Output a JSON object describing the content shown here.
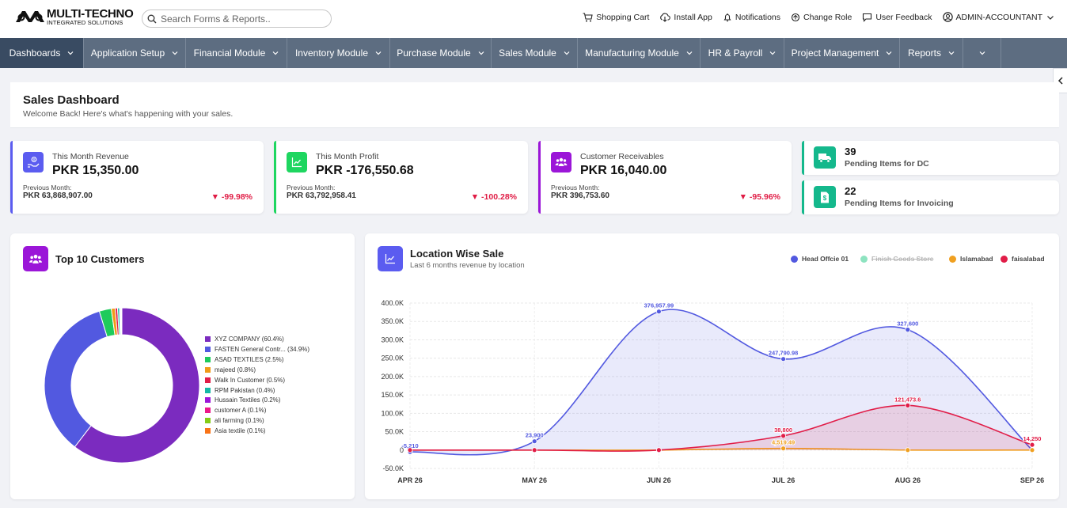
{
  "app": {
    "logo_name": "MULTI-TECHNO",
    "logo_sub": "INTEGRATED SOLUTIONS"
  },
  "search": {
    "placeholder": "Search Forms & Reports.."
  },
  "toplinks": [
    {
      "label": "Shopping Cart",
      "icon": "cart-icon"
    },
    {
      "label": "Install App",
      "icon": "cloud-download-icon"
    },
    {
      "label": "Notifications",
      "icon": "bell-icon"
    },
    {
      "label": "Change Role",
      "icon": "refresh-icon"
    },
    {
      "label": "User Feedback",
      "icon": "comment-icon"
    },
    {
      "label": "ADMIN-ACCOUNTANT",
      "icon": "user-circle-icon"
    }
  ],
  "nav": [
    {
      "label": "Dashboards",
      "active": true
    },
    {
      "label": "Application Setup"
    },
    {
      "label": "Financial Module"
    },
    {
      "label": "Inventory Module"
    },
    {
      "label": "Purchase Module"
    },
    {
      "label": "Sales Module"
    },
    {
      "label": "Manufacturing Module"
    },
    {
      "label": "HR & Payroll"
    },
    {
      "label": "Project Management"
    },
    {
      "label": "Reports"
    },
    {
      "label": ""
    }
  ],
  "page": {
    "title": "Sales Dashboard",
    "subtitle": "Welcome Back! Here's what's happening with your sales."
  },
  "kpis": [
    {
      "label": "This Month Revenue",
      "value": "PKR 15,350.00",
      "prev_label": "Previous Month:",
      "prev_value": "PKR 63,868,907.00",
      "change": "▼ -99.98%",
      "color": "#5b5cf0",
      "icon": "hand-coin-icon"
    },
    {
      "label": "This Month Profit",
      "value": "PKR -176,550.68",
      "prev_label": "Previous Month:",
      "prev_value": "PKR 63,792,958.41",
      "change": "▼ -100.28%",
      "color": "#1ed660",
      "icon": "line-chart-icon"
    },
    {
      "label": "Customer Receivables",
      "value": "PKR 16,040.00",
      "prev_label": "Previous Month:",
      "prev_value": "PKR 396,753.60",
      "change": "▼ -95.96%",
      "color": "#9b16d8",
      "icon": "users-icon"
    }
  ],
  "pending": [
    {
      "count": "39",
      "label": "Pending Items for DC",
      "icon": "truck-icon"
    },
    {
      "count": "22",
      "label": "Pending Items for Invoicing",
      "icon": "invoice-icon"
    }
  ],
  "customers_card": {
    "title": "Top 10 Customers"
  },
  "location_card": {
    "title": "Location Wise Sale",
    "subtitle": "Last 6 months revenue by location"
  },
  "chart_data": [
    {
      "type": "pie",
      "style": "donut",
      "title": "Top 10 Customers",
      "legend_position": "right",
      "slices": [
        {
          "label": "XYZ COMPANY (60.4%)",
          "value": 60.4,
          "color": "#7b2bbf"
        },
        {
          "label": "FASTEN General Contr... (34.9%)",
          "value": 34.9,
          "color": "#5259e0"
        },
        {
          "label": "ASAD TEXTILES (2.5%)",
          "value": 2.5,
          "color": "#1ecb5c"
        },
        {
          "label": "majeed (0.8%)",
          "value": 0.8,
          "color": "#f09a17"
        },
        {
          "label": "Walk In Customer (0.5%)",
          "value": 0.5,
          "color": "#e11d48"
        },
        {
          "label": "RPM Pakistan (0.4%)",
          "value": 0.4,
          "color": "#14b8a6"
        },
        {
          "label": "Hussain Textiles (0.2%)",
          "value": 0.2,
          "color": "#9b16d8"
        },
        {
          "label": "customer A (0.1%)",
          "value": 0.1,
          "color": "#ec1889"
        },
        {
          "label": "ali farming (0.1%)",
          "value": 0.1,
          "color": "#84cc16"
        },
        {
          "label": "Asia textile (0.1%)",
          "value": 0.1,
          "color": "#f97316"
        }
      ]
    },
    {
      "type": "area",
      "title": "Location Wise Sale",
      "categories": [
        "APR 26",
        "MAY 26",
        "JUN 26",
        "JUL 26",
        "AUG 26",
        "SEP 26"
      ],
      "ylim": [
        -50000,
        400000
      ],
      "yticks": [
        -50000,
        0,
        50000,
        100000,
        150000,
        200000,
        250000,
        300000,
        350000,
        400000
      ],
      "ytick_labels": [
        "-50.0K",
        "0",
        "50.0K",
        "100.0K",
        "150.0K",
        "200.0K",
        "250.0K",
        "300.0K",
        "350.0K",
        "400.0K"
      ],
      "grid": true,
      "legend_position": "top-right",
      "series": [
        {
          "name": "Head Offcie 01",
          "color": "#5259e0",
          "visible": true,
          "values": [
            -5210,
            23900,
            376957.99,
            247790.98,
            327600,
            0
          ],
          "labels": [
            "-5,210",
            "23,900",
            "376,957.99",
            "247,790.98",
            "327,600",
            ""
          ]
        },
        {
          "name": "Finish Goods Store",
          "color": "#8ee3c0",
          "visible": false,
          "values": [
            0,
            0,
            0,
            0,
            0,
            0
          ],
          "labels": [
            "",
            "",
            "",
            "",
            "",
            ""
          ]
        },
        {
          "name": "Islamabad",
          "color": "#f0a020",
          "visible": true,
          "values": [
            0,
            0,
            0,
            4519.49,
            0,
            0
          ],
          "labels": [
            "",
            "",
            "",
            "4,519.49",
            "",
            ""
          ]
        },
        {
          "name": "faisalabad",
          "color": "#e11d48",
          "visible": true,
          "values": [
            0,
            0,
            0,
            38800,
            121473.6,
            14250
          ],
          "labels": [
            "",
            "",
            "",
            "38,800",
            "121,473.6",
            "14,250"
          ]
        }
      ]
    }
  ]
}
